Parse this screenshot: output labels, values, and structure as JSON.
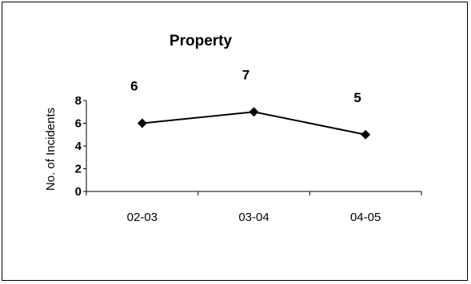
{
  "chart_data": {
    "type": "line",
    "title": "Property",
    "xlabel": "",
    "ylabel": "No. of Incidents",
    "categories": [
      "02-03",
      "03-04",
      "04-05"
    ],
    "values": [
      6,
      7,
      5
    ],
    "data_labels": [
      "6",
      "7",
      "5"
    ],
    "ylim": [
      0,
      8
    ],
    "yticks": [
      "0",
      "2",
      "4",
      "6",
      "8"
    ],
    "grid": false,
    "legend": "none",
    "marker": "diamond",
    "line_color": "#000000"
  }
}
